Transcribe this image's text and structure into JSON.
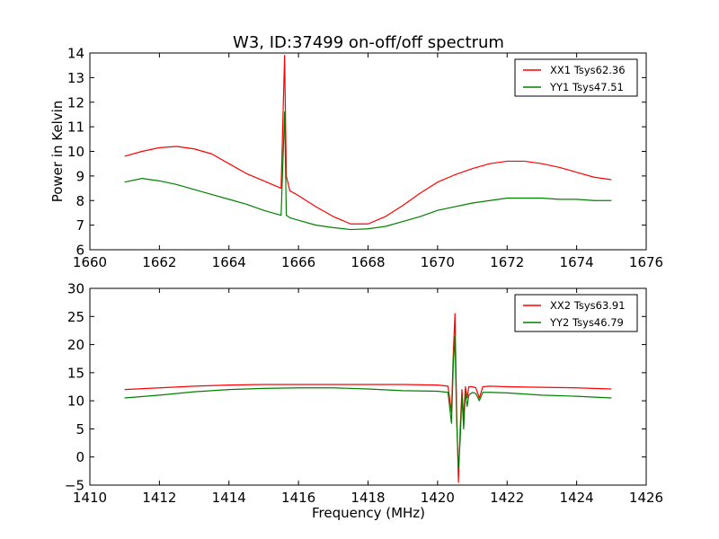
{
  "figure": {
    "title": "W3, ID:37499 on-off/off spectrum"
  },
  "chart_data": [
    {
      "type": "line",
      "title": "W3, ID:37499 on-off/off spectrum",
      "xlabel": "",
      "ylabel": "Power in Kelvin",
      "xlim": [
        1660,
        1676
      ],
      "ylim": [
        6,
        14
      ],
      "xticks": [
        1660,
        1662,
        1664,
        1666,
        1668,
        1670,
        1672,
        1674,
        1676
      ],
      "yticks": [
        6,
        7,
        8,
        9,
        10,
        11,
        12,
        13,
        14
      ],
      "grid": false,
      "legend": "top-right",
      "series": [
        {
          "name": "XX1 Tsys62.36",
          "color": "#ff0000",
          "x": [
            1661.0,
            1661.5,
            1662.0,
            1662.5,
            1663.0,
            1663.5,
            1664.0,
            1664.5,
            1665.0,
            1665.5,
            1665.6,
            1665.65,
            1665.75,
            1666.0,
            1666.5,
            1667.0,
            1667.5,
            1668.0,
            1668.5,
            1669.0,
            1669.5,
            1670.0,
            1670.5,
            1671.0,
            1671.5,
            1672.0,
            1672.5,
            1673.0,
            1673.5,
            1674.0,
            1674.5,
            1675.0
          ],
          "values": [
            9.8,
            10.0,
            10.15,
            10.2,
            10.1,
            9.9,
            9.5,
            9.1,
            8.8,
            8.5,
            13.9,
            9.0,
            8.4,
            8.2,
            7.75,
            7.35,
            7.05,
            7.05,
            7.35,
            7.8,
            8.3,
            8.75,
            9.05,
            9.3,
            9.5,
            9.6,
            9.6,
            9.5,
            9.35,
            9.15,
            8.95,
            8.85
          ]
        },
        {
          "name": "YY1 Tsys47.51",
          "color": "#008000",
          "x": [
            1661.0,
            1661.5,
            1662.0,
            1662.5,
            1663.0,
            1663.5,
            1664.0,
            1664.5,
            1665.0,
            1665.5,
            1665.6,
            1665.65,
            1665.75,
            1666.0,
            1666.5,
            1667.0,
            1667.5,
            1668.0,
            1668.5,
            1669.0,
            1669.5,
            1670.0,
            1670.5,
            1671.0,
            1671.5,
            1672.0,
            1672.5,
            1673.0,
            1673.5,
            1674.0,
            1674.5,
            1675.0
          ],
          "values": [
            8.75,
            8.9,
            8.8,
            8.65,
            8.45,
            8.25,
            8.05,
            7.85,
            7.6,
            7.4,
            11.6,
            7.4,
            7.3,
            7.2,
            7.0,
            6.9,
            6.82,
            6.85,
            6.95,
            7.15,
            7.35,
            7.6,
            7.75,
            7.9,
            8.0,
            8.1,
            8.1,
            8.1,
            8.05,
            8.05,
            8.0,
            8.0
          ]
        }
      ]
    },
    {
      "type": "line",
      "title": "",
      "xlabel": "Frequency (MHz)",
      "ylabel": "",
      "xlim": [
        1410,
        1426
      ],
      "ylim": [
        -5,
        30
      ],
      "xticks": [
        1410,
        1412,
        1414,
        1416,
        1418,
        1420,
        1422,
        1424,
        1426
      ],
      "yticks": [
        -5,
        0,
        5,
        10,
        15,
        20,
        25,
        30
      ],
      "grid": false,
      "legend": "top-right",
      "series": [
        {
          "name": "XX2 Tsys63.91",
          "color": "#ff0000",
          "x": [
            1411.0,
            1412.0,
            1413.0,
            1414.0,
            1415.0,
            1416.0,
            1417.0,
            1418.0,
            1419.0,
            1420.0,
            1420.3,
            1420.4,
            1420.45,
            1420.5,
            1420.55,
            1420.6,
            1420.65,
            1420.7,
            1420.75,
            1420.8,
            1420.85,
            1420.9,
            1421.0,
            1421.1,
            1421.2,
            1421.3,
            1421.5,
            1422.0,
            1423.0,
            1424.0,
            1425.0
          ],
          "values": [
            12.0,
            12.3,
            12.6,
            12.8,
            12.9,
            12.9,
            12.9,
            12.9,
            12.9,
            12.8,
            12.6,
            8.0,
            18.0,
            25.5,
            8.0,
            -4.5,
            5.0,
            12.0,
            7.0,
            12.5,
            10.5,
            12.5,
            12.5,
            12.3,
            10.5,
            12.5,
            12.6,
            12.5,
            12.4,
            12.3,
            12.1
          ]
        },
        {
          "name": "YY2 Tsys46.79",
          "color": "#008000",
          "x": [
            1411.0,
            1412.0,
            1413.0,
            1414.0,
            1415.0,
            1416.0,
            1417.0,
            1418.0,
            1419.0,
            1420.0,
            1420.3,
            1420.4,
            1420.45,
            1420.5,
            1420.55,
            1420.6,
            1420.65,
            1420.7,
            1420.75,
            1420.8,
            1420.85,
            1420.9,
            1421.0,
            1421.1,
            1421.2,
            1421.3,
            1421.5,
            1422.0,
            1423.0,
            1424.0,
            1425.0
          ],
          "values": [
            10.5,
            11.0,
            11.6,
            12.0,
            12.2,
            12.3,
            12.3,
            12.1,
            11.8,
            11.7,
            11.5,
            6.0,
            16.0,
            21.5,
            6.0,
            -2.0,
            3.0,
            11.0,
            5.0,
            11.5,
            9.0,
            11.0,
            11.5,
            11.3,
            10.0,
            11.5,
            11.5,
            11.4,
            11.0,
            10.8,
            10.5
          ]
        }
      ]
    }
  ]
}
